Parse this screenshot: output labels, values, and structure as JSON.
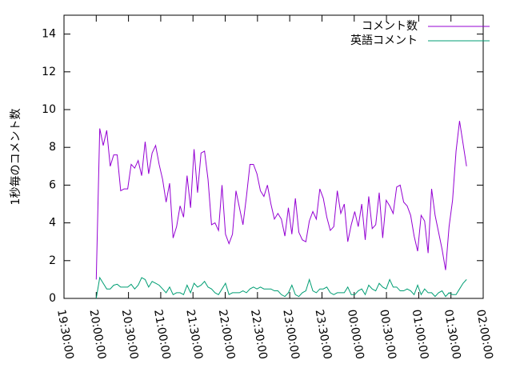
{
  "chart_data": {
    "type": "line",
    "y_label": "1秒毎のコメント数",
    "x": [
      "20:00:00",
      "20:03:15",
      "20:06:30",
      "20:09:45",
      "20:13:00",
      "20:16:15",
      "20:19:30",
      "20:22:45",
      "20:26:00",
      "20:29:15",
      "20:32:30",
      "20:35:45",
      "20:39:00",
      "20:42:15",
      "20:45:30",
      "20:48:45",
      "20:52:00",
      "20:55:15",
      "20:58:30",
      "21:01:45",
      "21:05:00",
      "21:08:15",
      "21:11:30",
      "21:14:45",
      "21:18:00",
      "21:21:15",
      "21:24:30",
      "21:27:45",
      "21:31:00",
      "21:34:15",
      "21:37:30",
      "21:40:45",
      "21:44:00",
      "21:47:15",
      "21:50:30",
      "21:53:45",
      "21:57:00",
      "22:00:15",
      "22:03:30",
      "22:06:45",
      "22:10:00",
      "22:13:15",
      "22:16:30",
      "22:19:45",
      "22:23:00",
      "22:26:15",
      "22:29:30",
      "22:32:45",
      "22:36:00",
      "22:39:15",
      "22:42:30",
      "22:45:45",
      "22:49:00",
      "22:52:15",
      "22:55:30",
      "22:58:45",
      "23:02:00",
      "23:05:15",
      "23:08:30",
      "23:11:45",
      "23:15:00",
      "23:18:15",
      "23:21:30",
      "23:24:45",
      "23:28:00",
      "23:31:15",
      "23:34:30",
      "23:37:45",
      "23:41:00",
      "23:44:15",
      "23:47:30",
      "23:50:45",
      "23:54:00",
      "23:57:15",
      "00:00:30",
      "00:03:45",
      "00:07:00",
      "00:10:15",
      "00:13:30",
      "00:16:45",
      "00:20:00",
      "00:23:15",
      "00:26:30",
      "00:29:45",
      "00:33:00",
      "00:36:15",
      "00:39:30",
      "00:42:45",
      "00:46:00",
      "00:49:15",
      "00:52:30",
      "00:55:45",
      "00:59:00",
      "01:02:15",
      "01:05:30",
      "01:08:45",
      "01:12:00",
      "01:15:15",
      "01:18:30",
      "01:21:45",
      "01:25:00",
      "01:28:15",
      "01:31:30",
      "01:34:45",
      "01:38:00",
      "01:41:15",
      "01:44:30"
    ],
    "series": [
      {
        "name": "コメント数",
        "color": "#9400d3",
        "values": [
          1.0,
          9.0,
          8.1,
          8.9,
          7.0,
          7.6,
          7.6,
          5.7,
          5.8,
          5.8,
          7.1,
          6.9,
          7.3,
          6.5,
          8.3,
          6.6,
          7.7,
          8.1,
          7.1,
          6.3,
          5.1,
          6.1,
          3.2,
          3.8,
          4.9,
          4.3,
          6.5,
          4.8,
          7.9,
          5.6,
          7.7,
          7.8,
          6.3,
          3.9,
          4.0,
          3.6,
          6.0,
          3.4,
          2.9,
          3.4,
          5.7,
          4.8,
          3.9,
          5.4,
          7.1,
          7.1,
          6.6,
          5.7,
          5.4,
          6.0,
          5.0,
          4.2,
          4.5,
          4.2,
          3.3,
          4.8,
          3.4,
          5.3,
          3.5,
          3.1,
          3.0,
          4.1,
          4.6,
          4.2,
          5.8,
          5.3,
          4.3,
          3.6,
          3.8,
          5.7,
          4.5,
          5.0,
          3.0,
          3.9,
          4.6,
          3.8,
          5.0,
          3.1,
          5.4,
          3.7,
          3.9,
          5.6,
          3.2,
          5.2,
          4.9,
          4.5,
          5.9,
          6.0,
          5.1,
          4.9,
          4.4,
          3.3,
          2.5,
          4.4,
          4.1,
          2.4,
          5.8,
          4.4,
          3.5,
          2.6,
          1.5,
          3.8,
          5.2,
          7.8,
          9.4,
          8.2,
          7.0
        ]
      },
      {
        "name": "英語コメント",
        "color": "#009e73",
        "values": [
          0,
          1.1,
          0.8,
          0.5,
          0.5,
          0.7,
          0.75,
          0.6,
          0.6,
          0.6,
          0.75,
          0.5,
          0.7,
          1.1,
          1.0,
          0.6,
          0.9,
          0.8,
          0.7,
          0.5,
          0.3,
          0.6,
          0.2,
          0.3,
          0.3,
          0.2,
          0.7,
          0.3,
          0.8,
          0.6,
          0.7,
          0.9,
          0.6,
          0.5,
          0.3,
          0.2,
          0.5,
          0.8,
          0.2,
          0.3,
          0.3,
          0.3,
          0.4,
          0.3,
          0.5,
          0.6,
          0.5,
          0.6,
          0.5,
          0.5,
          0.5,
          0.4,
          0.4,
          0.2,
          0.1,
          0.3,
          0.7,
          0.2,
          0.1,
          0.3,
          0.4,
          1.0,
          0.4,
          0.3,
          0.5,
          0.5,
          0.6,
          0.3,
          0.2,
          0.3,
          0.3,
          0.3,
          0.6,
          0.2,
          0.2,
          0.4,
          0.5,
          0.2,
          0.7,
          0.5,
          0.4,
          0.8,
          0.6,
          0.5,
          1.0,
          0.6,
          0.6,
          0.4,
          0.4,
          0.5,
          0.4,
          0.2,
          0.7,
          0.2,
          0.5,
          0.3,
          0.3,
          0.1,
          0.3,
          0.4,
          0.1,
          0.3,
          0.2,
          0.2,
          0.5,
          0.8,
          1.0
        ]
      }
    ],
    "xlim": [
      "19:30:00",
      "02:00:00"
    ],
    "xticks": [
      "19:30:00",
      "20:00:00",
      "20:30:00",
      "21:00:00",
      "21:30:00",
      "22:00:00",
      "22:30:00",
      "23:00:00",
      "23:30:00",
      "00:00:00",
      "00:30:00",
      "01:00:00",
      "01:30:00",
      "02:00:00"
    ],
    "ylim": [
      0,
      15
    ],
    "yticks": [
      0,
      2,
      4,
      6,
      8,
      10,
      12,
      14
    ],
    "legend": "upper right"
  }
}
